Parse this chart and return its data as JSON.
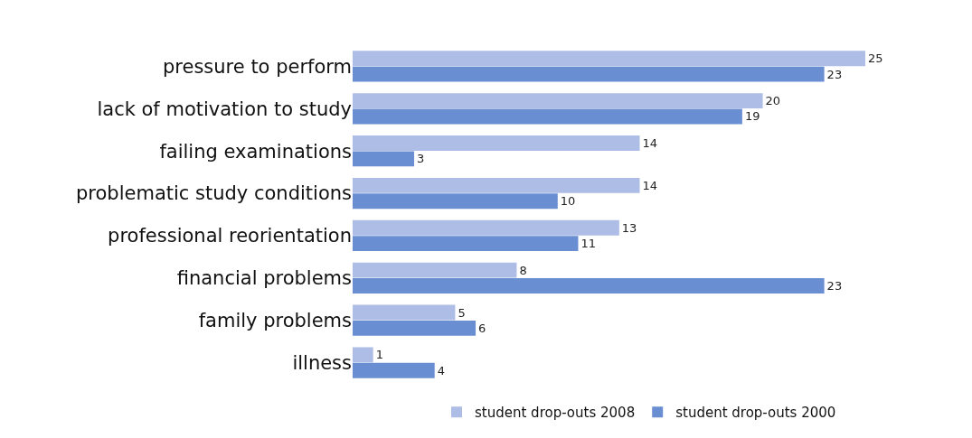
{
  "chart_data": {
    "type": "bar",
    "orientation": "horizontal",
    "data_labels": true,
    "legend": "bottom",
    "categories": [
      "pressure to perform",
      "lack of motivation to study",
      "failing examinations",
      "problematic study conditions",
      "professional reorientation",
      "financial problems",
      "family problems",
      "illness"
    ],
    "series": [
      {
        "name": "student drop-outs 2008",
        "color": "#aebde6",
        "values": [
          25,
          20,
          14,
          14,
          13,
          8,
          5,
          1
        ]
      },
      {
        "name": "student drop-outs 2000",
        "color": "#6a8ed2",
        "values": [
          23,
          19,
          3,
          10,
          11,
          23,
          6,
          4
        ]
      }
    ]
  }
}
